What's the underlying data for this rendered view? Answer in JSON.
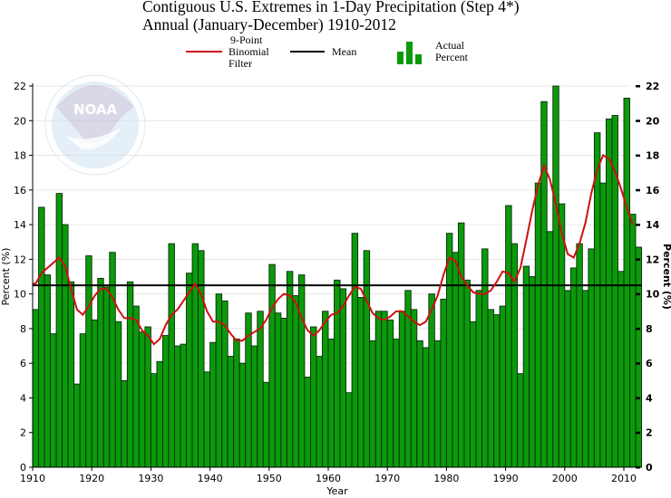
{
  "title": {
    "line1": "Contiguous U.S. Extremes in 1-Day Precipitation (Step 4*)",
    "line2": "Annual (January-December) 1910-2012"
  },
  "legend": {
    "filter_label_1": "9-Point",
    "filter_label_2": "Binomial",
    "filter_label_3": "Filter",
    "mean_label": "Mean",
    "actual_label_1": "Actual",
    "actual_label_2": "Percent"
  },
  "watermark": {
    "text": "NOAA",
    "ring_text": "NATIONAL OCEANIC AND ATMOSPHERIC ADMINISTRATION · U.S. DEPARTMENT OF COMMERCE"
  },
  "colors": {
    "bar_fill": "#0a9a0a",
    "bar_stroke": "#0d2a0d",
    "filter_line": "#cc1111",
    "mean_line": "#000000",
    "grid": "#e6e6e6"
  },
  "chart_data": {
    "type": "bar",
    "title": "Contiguous U.S. Extremes in 1-Day Precipitation (Step 4*) — Annual (January-December) 1910-2012",
    "xlabel": "Year",
    "ylabel": "Percent (%)",
    "ylabel_right": "Percent (%)",
    "ylim": [
      0,
      22
    ],
    "yticks": [
      0,
      2,
      4,
      6,
      8,
      10,
      12,
      14,
      16,
      18,
      20,
      22
    ],
    "xticks": [
      1910,
      1920,
      1930,
      1940,
      1950,
      1960,
      1970,
      1980,
      1990,
      2000,
      2010
    ],
    "grid": true,
    "legend_position": "top",
    "x_start": 1910,
    "x_end": 2012,
    "mean": 10.5,
    "series": [
      {
        "name": "Actual Percent",
        "type": "bar",
        "values": [
          9.1,
          15.0,
          11.1,
          7.7,
          15.8,
          14.0,
          10.7,
          4.8,
          7.7,
          12.2,
          8.5,
          10.9,
          10.4,
          12.4,
          8.4,
          5.0,
          10.7,
          9.3,
          7.8,
          8.1,
          5.4,
          6.1,
          7.6,
          12.9,
          7.0,
          7.1,
          11.2,
          12.9,
          12.5,
          5.5,
          7.2,
          10.0,
          9.6,
          6.4,
          7.4,
          6.0,
          8.9,
          7.0,
          9.0,
          4.9,
          11.7,
          8.9,
          8.6,
          11.3,
          9.9,
          11.1,
          5.2,
          8.1,
          6.4,
          9.0,
          7.4,
          10.8,
          10.3,
          4.3,
          13.5,
          9.8,
          12.5,
          7.3,
          9.0,
          9.0,
          8.5,
          7.4,
          9.0,
          10.2,
          9.1,
          7.3,
          6.9,
          10.0,
          7.3,
          9.7,
          13.5,
          12.4,
          14.1,
          10.8,
          8.4,
          10.2,
          12.6,
          9.1,
          8.8,
          9.3,
          15.1,
          12.9,
          5.4,
          11.6,
          11.0,
          16.4,
          21.1,
          13.6,
          22.0,
          15.2,
          10.2,
          11.5,
          12.9,
          10.2,
          12.6,
          19.3,
          16.4,
          20.1,
          20.3,
          11.3,
          21.3,
          14.6,
          12.7
        ]
      },
      {
        "name": "9-Point Binomial Filter",
        "type": "line",
        "values": [
          10.6,
          11.2,
          11.5,
          11.8,
          12.1,
          11.6,
          10.3,
          9.1,
          8.8,
          9.3,
          9.9,
          10.3,
          10.3,
          9.8,
          9.1,
          8.6,
          8.6,
          8.5,
          7.9,
          7.6,
          7.1,
          7.4,
          8.2,
          8.8,
          9.1,
          9.6,
          10.1,
          10.6,
          10.0,
          9.0,
          8.4,
          8.4,
          8.2,
          7.7,
          7.3,
          7.3,
          7.6,
          7.8,
          8.0,
          8.5,
          9.2,
          9.7,
          10.0,
          9.9,
          9.5,
          8.6,
          7.9,
          7.6,
          7.9,
          8.4,
          8.8,
          8.9,
          9.3,
          9.9,
          10.4,
          10.3,
          9.6,
          8.9,
          8.6,
          8.5,
          8.7,
          9.0,
          9.0,
          8.7,
          8.4,
          8.2,
          8.4,
          9.1,
          9.9,
          11.1,
          12.1,
          11.9,
          11.0,
          10.5,
          10.1,
          10.0,
          10.0,
          10.2,
          10.7,
          11.3,
          11.2,
          10.7,
          11.5,
          13.1,
          14.8,
          16.3,
          17.4,
          16.6,
          15.2,
          13.5,
          12.3,
          12.1,
          12.9,
          14.1,
          15.8,
          17.2,
          18.0,
          17.8,
          17.1,
          16.1,
          15.0,
          14.0,
          14.0
        ]
      },
      {
        "name": "Mean",
        "type": "line",
        "value": 10.5
      }
    ]
  }
}
